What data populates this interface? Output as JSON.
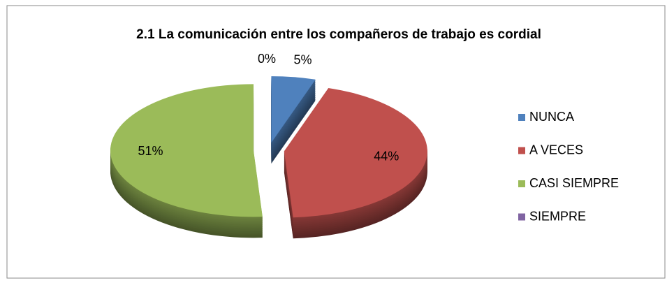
{
  "chart_data": {
    "type": "pie",
    "title": "2.1 La comunicación entre los compañeros de trabajo es cordial",
    "categories": [
      "NUNCA",
      "A VECES",
      "CASI SIEMPRE",
      "SIEMPRE"
    ],
    "values": [
      5,
      44,
      51,
      0
    ],
    "value_labels": [
      "5%",
      "44%",
      "51%",
      "0%"
    ],
    "colors": [
      "#4f81bd",
      "#c0504d",
      "#9bbb59",
      "#8064a2"
    ],
    "legend": "right"
  }
}
